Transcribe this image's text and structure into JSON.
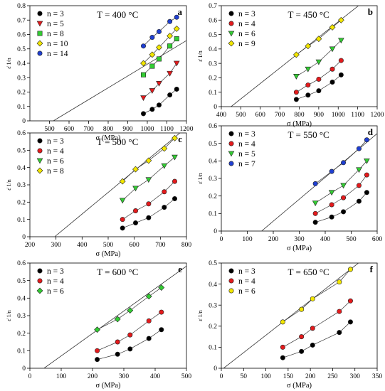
{
  "chart_data": [
    {
      "type": "scatter",
      "panel_label": "a",
      "title": "T = 400 °C",
      "xlabel": "σ (MPa)",
      "ylabel": "ε̇ 1/n",
      "xlim": [
        400,
        1200
      ],
      "ylim": [
        0,
        0.8
      ],
      "xticks": [
        500,
        600,
        700,
        800,
        900,
        1000,
        1100,
        1200
      ],
      "yticks": [
        0,
        0.1,
        0.2,
        0.3,
        0.4,
        0.5,
        0.6,
        0.7,
        0.8
      ],
      "xtick_labels": [
        "500",
        "600",
        "700",
        "800",
        "900",
        "1000",
        "1100",
        "1200"
      ],
      "ytick_labels": [
        "0",
        "0.1",
        "0.2",
        "0.3",
        "0.4",
        "0.5",
        "0.6",
        "0.7",
        "0.8"
      ],
      "fit_line": {
        "x0": 520,
        "slope": 0.00082
      },
      "legend": "top-left",
      "series": [
        {
          "name": "n = 3",
          "marker": "circle",
          "color": "#000000",
          "x": [
            980,
            1025,
            1060,
            1115,
            1150
          ],
          "y": [
            0.05,
            0.08,
            0.11,
            0.18,
            0.22
          ]
        },
        {
          "name": "n = 5",
          "marker": "triangle-down",
          "color": "#e31a1c",
          "x": [
            980,
            1025,
            1060,
            1115,
            1150
          ],
          "y": [
            0.16,
            0.21,
            0.26,
            0.33,
            0.4
          ]
        },
        {
          "name": "n = 8",
          "marker": "square",
          "color": "#33cc33",
          "x": [
            980,
            1025,
            1060,
            1115,
            1150
          ],
          "y": [
            0.32,
            0.38,
            0.43,
            0.52,
            0.57
          ]
        },
        {
          "name": "n = 10",
          "marker": "diamond",
          "color": "#f2e600",
          "x": [
            980,
            1025,
            1060,
            1115,
            1150
          ],
          "y": [
            0.4,
            0.46,
            0.51,
            0.59,
            0.64
          ]
        },
        {
          "name": "n = 14",
          "marker": "circle",
          "color": "#1f3fd1",
          "x": [
            980,
            1025,
            1060,
            1115,
            1150
          ],
          "y": [
            0.52,
            0.58,
            0.62,
            0.69,
            0.72
          ]
        }
      ]
    },
    {
      "type": "scatter",
      "panel_label": "b",
      "title": "T = 450 °C",
      "xlabel": "σ (MPa)",
      "ylabel": "ε̇ 1/n",
      "xlim": [
        400,
        1200
      ],
      "ylim": [
        0,
        0.7
      ],
      "xticks": [
        400,
        500,
        600,
        700,
        800,
        900,
        1000,
        1100,
        1200
      ],
      "yticks": [
        0,
        0.1,
        0.2,
        0.3,
        0.4,
        0.5,
        0.6,
        0.7
      ],
      "xtick_labels": [
        "400",
        "500",
        "600",
        "700",
        "800",
        "900",
        "1000",
        "1100",
        "1200"
      ],
      "ytick_labels": [
        "0",
        "0.1",
        "0.2",
        "0.3",
        "0.4",
        "0.5",
        "0.6",
        "0.7"
      ],
      "fit_line": {
        "x0": 450,
        "slope": 0.00107
      },
      "legend": "top-left",
      "series": [
        {
          "name": "n = 3",
          "marker": "circle",
          "color": "#000000",
          "x": [
            785,
            845,
            900,
            970,
            1015
          ],
          "y": [
            0.05,
            0.08,
            0.11,
            0.17,
            0.22
          ]
        },
        {
          "name": "n = 4",
          "marker": "circle",
          "color": "#e31a1c",
          "x": [
            785,
            845,
            900,
            970,
            1015
          ],
          "y": [
            0.1,
            0.15,
            0.19,
            0.26,
            0.32
          ]
        },
        {
          "name": "n = 6",
          "marker": "triangle-down",
          "color": "#33cc33",
          "x": [
            785,
            845,
            900,
            970,
            1015
          ],
          "y": [
            0.21,
            0.26,
            0.31,
            0.4,
            0.46
          ]
        },
        {
          "name": "n = 9",
          "marker": "diamond",
          "color": "#f2e600",
          "x": [
            785,
            845,
            900,
            970,
            1015
          ],
          "y": [
            0.36,
            0.42,
            0.47,
            0.55,
            0.6
          ]
        }
      ]
    },
    {
      "type": "scatter",
      "panel_label": "c",
      "title": "T = 500 °C",
      "xlabel": "σ (MPa)",
      "ylabel": "ε̇ 1/n",
      "xlim": [
        200,
        800
      ],
      "ylim": [
        0,
        0.6
      ],
      "xticks": [
        200,
        300,
        400,
        500,
        600,
        700,
        800
      ],
      "yticks": [
        0,
        0.1,
        0.2,
        0.3,
        0.4,
        0.5,
        0.6
      ],
      "xtick_labels": [
        "200",
        "300",
        "400",
        "500",
        "600",
        "700",
        "800"
      ],
      "ytick_labels": [
        "0",
        "0.1",
        "0.2",
        "0.3",
        "0.4",
        "0.5",
        "0.6"
      ],
      "fit_line": {
        "x0": 295,
        "slope": 0.00125
      },
      "legend": "top-left",
      "series": [
        {
          "name": "n = 3",
          "marker": "circle",
          "color": "#000000",
          "x": [
            555,
            605,
            655,
            715,
            755
          ],
          "y": [
            0.05,
            0.08,
            0.11,
            0.17,
            0.22
          ]
        },
        {
          "name": "n = 4",
          "marker": "circle",
          "color": "#e31a1c",
          "x": [
            555,
            605,
            655,
            715,
            755
          ],
          "y": [
            0.1,
            0.15,
            0.19,
            0.26,
            0.32
          ]
        },
        {
          "name": "n = 6",
          "marker": "triangle-down",
          "color": "#33cc33",
          "x": [
            555,
            605,
            655,
            715,
            755
          ],
          "y": [
            0.21,
            0.28,
            0.33,
            0.41,
            0.46
          ]
        },
        {
          "name": "n = 8",
          "marker": "diamond",
          "color": "#f2e600",
          "x": [
            555,
            605,
            655,
            715,
            755
          ],
          "y": [
            0.32,
            0.39,
            0.44,
            0.51,
            0.57
          ]
        }
      ]
    },
    {
      "type": "scatter",
      "panel_label": "d",
      "title": "T = 550 °C",
      "xlabel": "σ (MPa)",
      "ylabel": "ε̇ 1/n",
      "xlim": [
        0,
        600
      ],
      "ylim": [
        0,
        0.6
      ],
      "xticks": [
        0,
        100,
        200,
        300,
        400,
        500,
        600
      ],
      "yticks": [
        0,
        0.1,
        0.2,
        0.3,
        0.4,
        0.5,
        0.6
      ],
      "xtick_labels": [
        "0",
        "100",
        "200",
        "300",
        "400",
        "500",
        "600"
      ],
      "ytick_labels": [
        "0",
        "0.1",
        "0.2",
        "0.3",
        "0.4",
        "0.5",
        "0.6"
      ],
      "fit_line": {
        "x0": 155,
        "slope": 0.00125
      },
      "legend": "top-left",
      "series": [
        {
          "name": "n = 3",
          "marker": "circle",
          "color": "#000000",
          "x": [
            362,
            425,
            470,
            530,
            560
          ],
          "y": [
            0.05,
            0.08,
            0.11,
            0.17,
            0.22
          ]
        },
        {
          "name": "n = 4",
          "marker": "circle",
          "color": "#e31a1c",
          "x": [
            362,
            425,
            470,
            530,
            560
          ],
          "y": [
            0.1,
            0.15,
            0.19,
            0.26,
            0.32
          ]
        },
        {
          "name": "n = 5",
          "marker": "triangle-down",
          "color": "#33cc33",
          "x": [
            362,
            425,
            470,
            530,
            560
          ],
          "y": [
            0.16,
            0.22,
            0.26,
            0.35,
            0.4
          ]
        },
        {
          "name": "n = 7",
          "marker": "circle",
          "color": "#1f3fd1",
          "x": [
            362,
            425,
            470,
            530,
            560
          ],
          "y": [
            0.27,
            0.34,
            0.39,
            0.47,
            0.52
          ]
        }
      ]
    },
    {
      "type": "scatter",
      "panel_label": "e",
      "title": "T = 600 °C",
      "xlabel": "σ (MPa)",
      "ylabel": "ε̇ 1/n",
      "xlim": [
        0,
        500
      ],
      "ylim": [
        0,
        0.6
      ],
      "xticks": [
        0,
        100,
        200,
        300,
        400,
        500
      ],
      "yticks": [
        0,
        0.1,
        0.2,
        0.3,
        0.4,
        0.5,
        0.6
      ],
      "xtick_labels": [
        "0",
        "100",
        "200",
        "300",
        "400",
        "500"
      ],
      "ytick_labels": [
        "0",
        "0.1",
        "0.2",
        "0.3",
        "0.4",
        "0.5",
        "0.6"
      ],
      "fit_line": {
        "x0": 45,
        "slope": 0.00128
      },
      "legend": "top-left",
      "series": [
        {
          "name": "n = 3",
          "marker": "circle",
          "color": "#000000",
          "x": [
            215,
            280,
            320,
            380,
            420
          ],
          "y": [
            0.05,
            0.08,
            0.11,
            0.17,
            0.22
          ]
        },
        {
          "name": "n = 4",
          "marker": "circle",
          "color": "#e31a1c",
          "x": [
            215,
            280,
            320,
            380,
            420
          ],
          "y": [
            0.1,
            0.15,
            0.19,
            0.27,
            0.32
          ]
        },
        {
          "name": "n = 6",
          "marker": "diamond",
          "color": "#33cc33",
          "x": [
            215,
            280,
            320,
            380,
            420
          ],
          "y": [
            0.22,
            0.28,
            0.33,
            0.41,
            0.46
          ]
        }
      ]
    },
    {
      "type": "scatter",
      "panel_label": "f",
      "title": "T = 650 °C",
      "xlabel": "σ (MPa)",
      "ylabel": "ε̇ 1/n",
      "xlim": [
        0,
        350
      ],
      "ylim": [
        0,
        0.5
      ],
      "xticks": [
        0,
        50,
        100,
        150,
        200,
        250,
        300,
        350
      ],
      "yticks": [
        0,
        0.1,
        0.2,
        0.3,
        0.4,
        0.5
      ],
      "xtick_labels": [
        "0",
        "50",
        "100",
        "150",
        "200",
        "250",
        "300",
        "350"
      ],
      "ytick_labels": [
        "0",
        "0.1",
        "0.2",
        "0.3",
        "0.4",
        "0.5"
      ],
      "fit_line": {
        "x0": 5,
        "slope": 0.00165
      },
      "legend": "top-left",
      "series": [
        {
          "name": "n = 3",
          "marker": "circle",
          "color": "#000000",
          "x": [
            138,
            180,
            205,
            265,
            290
          ],
          "y": [
            0.05,
            0.08,
            0.11,
            0.17,
            0.22
          ]
        },
        {
          "name": "n = 4",
          "marker": "circle",
          "color": "#e31a1c",
          "x": [
            138,
            180,
            205,
            265,
            290
          ],
          "y": [
            0.1,
            0.15,
            0.19,
            0.27,
            0.32
          ]
        },
        {
          "name": "n = 6",
          "marker": "circle",
          "color": "#f2e600",
          "x": [
            138,
            180,
            205,
            265,
            290
          ],
          "y": [
            0.22,
            0.28,
            0.33,
            0.41,
            0.47
          ]
        }
      ]
    }
  ]
}
